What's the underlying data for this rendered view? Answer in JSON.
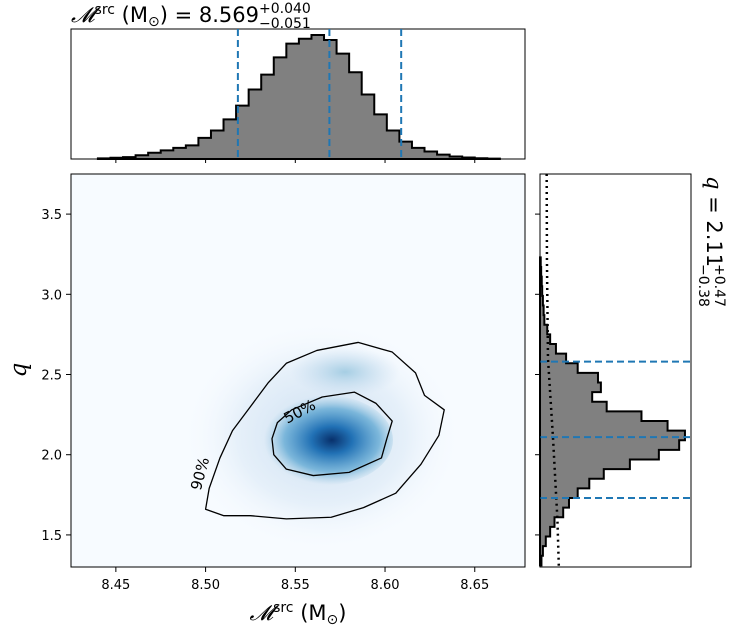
{
  "chart_data": [
    {
      "type": "histogram",
      "panel": "top-marginal",
      "title_symbol": "𝓜",
      "title_sup": "src",
      "title_unit": " (M",
      "title_unit_sub": "⊙",
      "title_unit_close": ")",
      "title_equals": " = ",
      "title_median": "8.569",
      "title_plus": "+0.040",
      "title_minus": "−0.051",
      "xlim": [
        8.425,
        8.678
      ],
      "bins": [
        8.44,
        8.61,
        8.62,
        8.63,
        8.64,
        8.65,
        8.66,
        8.67
      ],
      "bin_edges": [
        8.44,
        8.447,
        8.454,
        8.461,
        8.468,
        8.475,
        8.482,
        8.489,
        8.496,
        8.503,
        8.51,
        8.517,
        8.524,
        8.531,
        8.538,
        8.545,
        8.552,
        8.559,
        8.566,
        8.573,
        8.58,
        8.587,
        8.594,
        8.601,
        8.608,
        8.615,
        8.622,
        8.629,
        8.636,
        8.643,
        8.65,
        8.657,
        8.664
      ],
      "counts": [
        0.005,
        0.01,
        0.015,
        0.03,
        0.05,
        0.07,
        0.09,
        0.11,
        0.17,
        0.23,
        0.32,
        0.43,
        0.56,
        0.68,
        0.82,
        0.93,
        0.97,
        1.0,
        0.96,
        0.85,
        0.7,
        0.52,
        0.36,
        0.23,
        0.14,
        0.09,
        0.06,
        0.035,
        0.02,
        0.012,
        0.006,
        0.003
      ],
      "quantile_lines": [
        8.518,
        8.569,
        8.609
      ],
      "face_color": "#808080",
      "line_color": "#1f77b4"
    },
    {
      "type": "heatmap",
      "panel": "joint",
      "x_tick_labels": [
        "8.45",
        "8.50",
        "8.55",
        "8.60",
        "8.65"
      ],
      "x_ticks": [
        8.45,
        8.5,
        8.55,
        8.6,
        8.65
      ],
      "y_tick_labels": [
        "1.5",
        "2.0",
        "2.5",
        "3.0",
        "3.5"
      ],
      "y_ticks": [
        1.5,
        2.0,
        2.5,
        3.0,
        3.5
      ],
      "xlim": [
        8.425,
        8.678
      ],
      "ylim": [
        1.3,
        3.75
      ],
      "xlabel_symbol": "𝓜",
      "xlabel_sup": "src",
      "xlabel_unit": " (M",
      "xlabel_unit_sub": "⊙",
      "xlabel_unit_close": ")",
      "ylabel": "q",
      "density_peak": {
        "x": 8.572,
        "y": 2.1
      },
      "contour_labels": [
        "50%",
        "90%"
      ],
      "contour_50": [
        [
          8.54,
          2.2
        ],
        [
          8.548,
          2.28
        ],
        [
          8.565,
          2.36
        ],
        [
          8.583,
          2.39
        ],
        [
          8.595,
          2.32
        ],
        [
          8.604,
          2.21
        ],
        [
          8.601,
          2.1
        ],
        [
          8.598,
          1.98
        ],
        [
          8.58,
          1.89
        ],
        [
          8.56,
          1.87
        ],
        [
          8.545,
          1.91
        ],
        [
          8.538,
          2.0
        ],
        [
          8.537,
          2.1
        ]
      ],
      "contour_90": [
        [
          8.5,
          1.66
        ],
        [
          8.502,
          1.79
        ],
        [
          8.508,
          1.98
        ],
        [
          8.515,
          2.15
        ],
        [
          8.525,
          2.3
        ],
        [
          8.535,
          2.45
        ],
        [
          8.545,
          2.57
        ],
        [
          8.562,
          2.65
        ],
        [
          8.585,
          2.7
        ],
        [
          8.604,
          2.64
        ],
        [
          8.617,
          2.51
        ],
        [
          8.622,
          2.37
        ],
        [
          8.633,
          2.28
        ],
        [
          8.63,
          2.12
        ],
        [
          8.62,
          1.94
        ],
        [
          8.606,
          1.76
        ],
        [
          8.588,
          1.67
        ],
        [
          8.57,
          1.61
        ],
        [
          8.545,
          1.6
        ],
        [
          8.525,
          1.62
        ],
        [
          8.51,
          1.62
        ]
      ],
      "colormap": [
        "#f7fbff",
        "#c6dbef",
        "#6baed6",
        "#2171b5",
        "#08306b"
      ]
    },
    {
      "type": "histogram",
      "panel": "right-marginal",
      "orientation": "horizontal",
      "title_symbol": "q",
      "title_equals": " = ",
      "title_median": "2.11",
      "title_plus": "+0.47",
      "title_minus": "−0.38",
      "ylim": [
        1.3,
        3.75
      ],
      "bin_edges": [
        1.31,
        1.37,
        1.43,
        1.49,
        1.55,
        1.61,
        1.67,
        1.73,
        1.79,
        1.85,
        1.91,
        1.97,
        2.03,
        2.09,
        2.15,
        2.21,
        2.27,
        2.33,
        2.39,
        2.45,
        2.51,
        2.57,
        2.63,
        2.69,
        2.75,
        2.81,
        2.87,
        2.93,
        2.99,
        3.05,
        3.11,
        3.17,
        3.23
      ],
      "counts": [
        0.01,
        0.02,
        0.04,
        0.07,
        0.1,
        0.16,
        0.2,
        0.26,
        0.34,
        0.44,
        0.62,
        0.82,
        0.96,
        1.0,
        0.88,
        0.7,
        0.46,
        0.36,
        0.42,
        0.4,
        0.26,
        0.18,
        0.11,
        0.07,
        0.05,
        0.03,
        0.025,
        0.02,
        0.015,
        0.012,
        0.008,
        0.005
      ],
      "quantile_lines": [
        1.73,
        2.11,
        2.58
      ],
      "prior_dotted": [
        [
          3.75,
          0.046
        ],
        [
          3.2,
          0.048
        ],
        [
          2.6,
          0.055
        ],
        [
          2.1,
          0.09
        ],
        [
          1.6,
          0.12
        ],
        [
          1.3,
          0.13
        ]
      ],
      "face_color": "#808080",
      "line_color": "#1f77b4"
    }
  ]
}
